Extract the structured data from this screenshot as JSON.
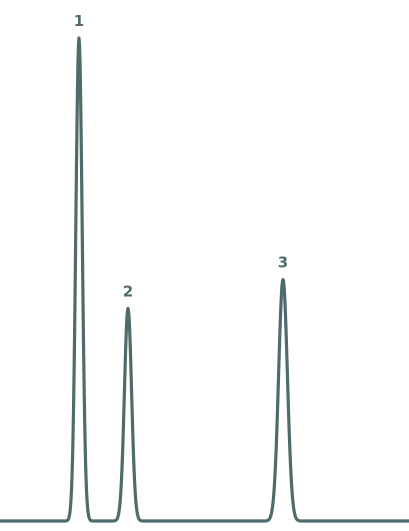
{
  "chart_data": {
    "type": "line",
    "title": "",
    "xlabel": "",
    "ylabel": "",
    "grid": false,
    "legend": "none",
    "series": [
      {
        "color": "#4f6b6b",
        "peaks": [
          {
            "label": "1",
            "center": 79,
            "height": 1.0,
            "sigma": 3.2
          },
          {
            "label": "2",
            "center": 128,
            "height": 0.44,
            "sigma": 3.6
          },
          {
            "label": "3",
            "center": 283,
            "height": 0.5,
            "sigma": 4.4
          }
        ]
      }
    ]
  }
}
